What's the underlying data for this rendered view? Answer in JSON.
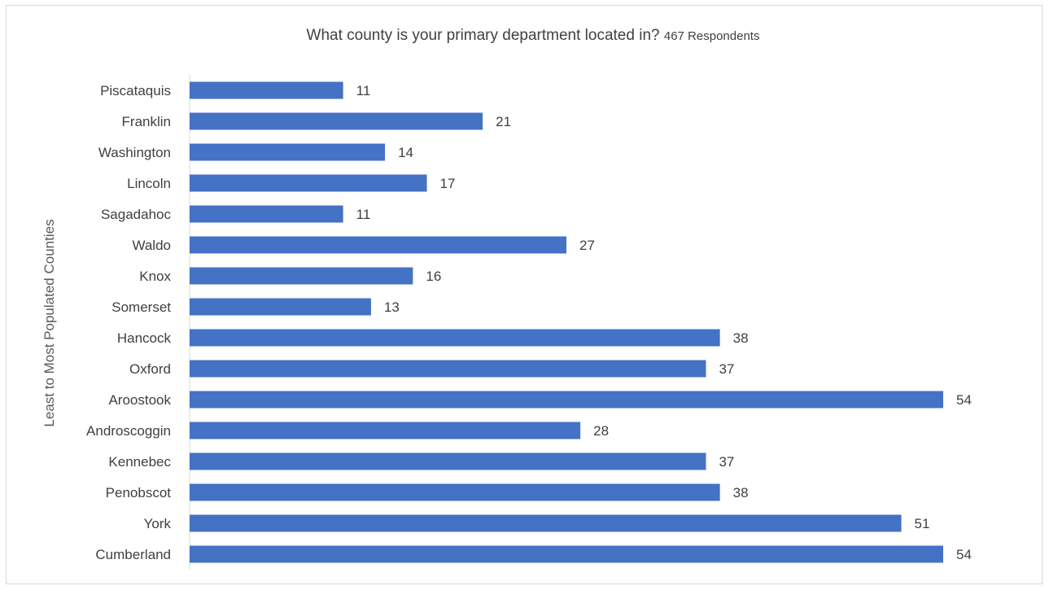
{
  "chart_data": {
    "type": "bar",
    "orientation": "horizontal",
    "title": "What county is your primary department located in?",
    "subtitle": "467 Respondents",
    "xlabel": "",
    "ylabel": "Least to Most Populated Counties",
    "xlim": [
      0,
      54
    ],
    "grid": false,
    "legend": "none",
    "bar_color": "#4472c4",
    "categories": [
      "Piscataquis",
      "Franklin",
      "Washington",
      "Lincoln",
      "Sagadahoc",
      "Waldo",
      "Knox",
      "Somerset",
      "Hancock",
      "Oxford",
      "Aroostook",
      "Androscoggin",
      "Kennebec",
      "Penobscot",
      "York",
      "Cumberland"
    ],
    "values": [
      11,
      21,
      14,
      17,
      11,
      27,
      16,
      13,
      38,
      37,
      54,
      28,
      37,
      38,
      51,
      54
    ],
    "data_labels": true
  }
}
